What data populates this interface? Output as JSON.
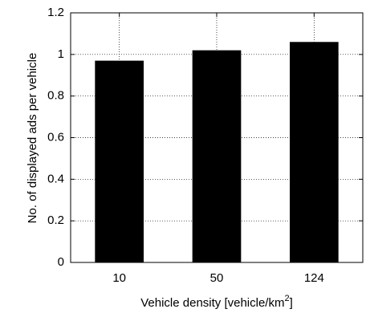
{
  "chart_data": {
    "type": "bar",
    "categories": [
      "10",
      "50",
      "124"
    ],
    "values": [
      0.97,
      1.02,
      1.06
    ],
    "xlabel": "Vehicle density [vehicle/km",
    "xlabel_sup": "2",
    "xlabel_end": "]",
    "ylabel": "No. of displayed ads per vehicle",
    "ylim": [
      0,
      1.2
    ],
    "yticks": [
      "0",
      "0.2",
      "0.4",
      "0.6",
      "0.8",
      "1",
      "1.2"
    ],
    "grid": true,
    "bar_color": "#000000"
  }
}
